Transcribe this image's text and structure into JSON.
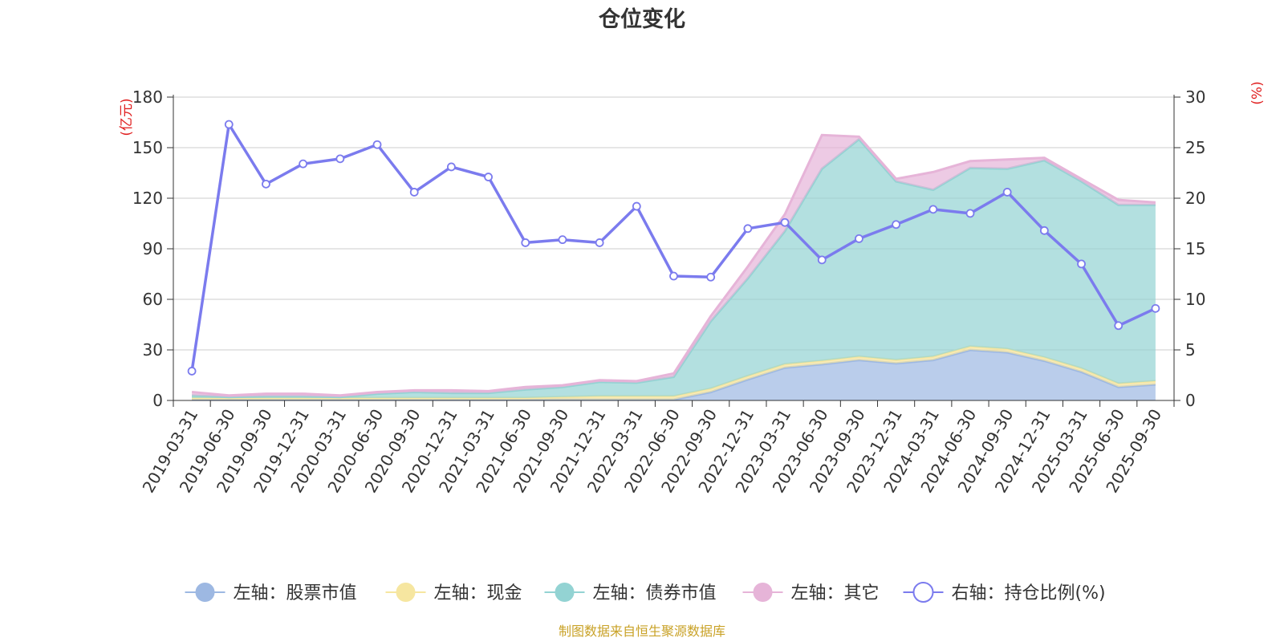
{
  "chart_data": {
    "type": "area",
    "title": "仓位变化",
    "left_axis": {
      "unit": "(亿元)",
      "min": 0,
      "max": 180,
      "ticks": [
        0,
        30,
        60,
        90,
        120,
        150,
        180
      ]
    },
    "right_axis": {
      "unit": "(%)",
      "min": 0,
      "max": 30,
      "ticks": [
        0,
        5,
        10,
        15,
        20,
        25,
        30
      ]
    },
    "categories": [
      "2019-03-31",
      "2019-06-30",
      "2019-09-30",
      "2019-12-31",
      "2020-03-31",
      "2020-06-30",
      "2020-09-30",
      "2020-12-31",
      "2021-03-31",
      "2021-06-30",
      "2021-09-30",
      "2021-12-31",
      "2022-03-31",
      "2022-06-30",
      "2022-09-30",
      "2022-12-31",
      "2023-03-31",
      "2023-06-30",
      "2023-09-30",
      "2023-12-31",
      "2024-03-31",
      "2024-06-30",
      "2024-09-30",
      "2024-12-31",
      "2025-03-31",
      "2025-06-30",
      "2025-09-30"
    ],
    "series": [
      {
        "name": "左轴：股票市值",
        "axis": "left",
        "kind": "stacked-area",
        "color": "#9db8e2",
        "values": [
          0.5,
          0.5,
          0.5,
          0.5,
          0.5,
          0.5,
          0.5,
          0.5,
          0.5,
          0.5,
          0.5,
          0.5,
          0.5,
          0.5,
          5,
          12.5,
          19.5,
          21.5,
          24,
          22,
          24,
          30,
          28.5,
          23.5,
          17,
          8,
          9.5
        ]
      },
      {
        "name": "左轴：现金",
        "axis": "left",
        "kind": "stacked-area",
        "color": "#f6e6a0",
        "values": [
          1,
          1,
          1,
          1,
          1,
          1,
          1,
          1,
          1,
          1,
          1.5,
          2,
          2,
          2,
          2,
          2,
          2,
          2,
          2,
          2,
          2,
          2,
          2,
          2,
          2,
          2,
          2
        ]
      },
      {
        "name": "左轴：债券市值",
        "axis": "left",
        "kind": "stacked-area",
        "color": "#93d3d3",
        "values": [
          1.5,
          0.5,
          1,
          1,
          0.5,
          2.5,
          3.5,
          3,
          3,
          5,
          6,
          8.5,
          8,
          11.5,
          40,
          58,
          79,
          114,
          129,
          106,
          99,
          106,
          107,
          117,
          111,
          106,
          104.5
        ]
      },
      {
        "name": "左轴：其它",
        "axis": "left",
        "kind": "stacked-area",
        "color": "#e6b4d8",
        "values": [
          2,
          1,
          1.5,
          1.5,
          1,
          1,
          1,
          1.5,
          1,
          1.5,
          1,
          1,
          1,
          2,
          3,
          7,
          10,
          20,
          1.5,
          1.5,
          10.5,
          4,
          5.5,
          1.5,
          1.5,
          3,
          1.5
        ]
      },
      {
        "name": "右轴：持仓比例(%)",
        "axis": "right",
        "kind": "line",
        "color": "#7b7bee",
        "values": [
          2.9,
          27.3,
          21.4,
          23.4,
          23.9,
          25.3,
          20.6,
          23.1,
          22.1,
          15.6,
          15.9,
          15.6,
          19.2,
          12.3,
          12.2,
          17,
          17.6,
          13.9,
          16,
          17.4,
          18.9,
          18.5,
          20.6,
          16.8,
          13.5,
          7.4,
          9.1
        ]
      }
    ],
    "legend_position": "bottom",
    "source": "制图数据来自恒生聚源数据库",
    "colors": {
      "axis_unit": "#e02020",
      "source": "#c9a227",
      "grid": "#cccccc",
      "axis_line": "#333333"
    }
  }
}
